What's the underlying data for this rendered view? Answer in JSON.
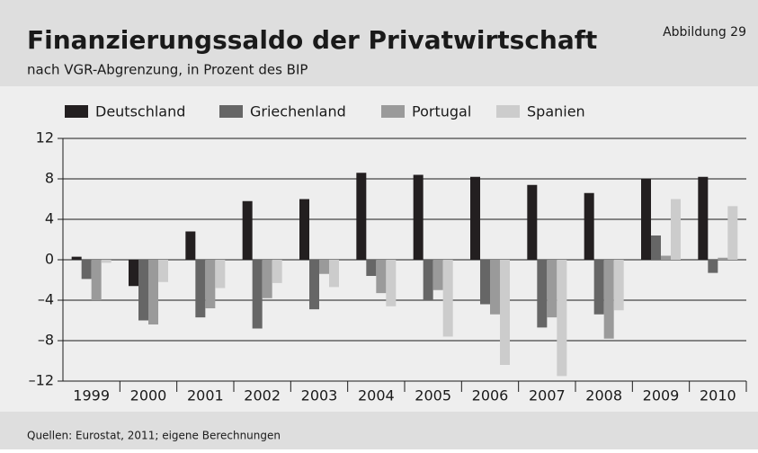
{
  "header": {
    "title": "Finanzierungssaldo der Privatwirtschaft",
    "subtitle": "nach VGR-Abgrenzung, in Prozent des BIP",
    "figure": "Abbildung 29"
  },
  "footer": {
    "source": "Quellen: Eurostat, 2011; eigene Berechnungen"
  },
  "chart_data": {
    "type": "bar",
    "categories": [
      "1999",
      "2000",
      "2001",
      "2002",
      "2003",
      "2004",
      "2005",
      "2006",
      "2007",
      "2008",
      "2009",
      "2010"
    ],
    "series": [
      {
        "name": "Deutschland",
        "color": "#231f20",
        "values": [
          0.3,
          -2.6,
          2.8,
          5.8,
          6.0,
          8.6,
          8.4,
          8.2,
          7.4,
          6.6,
          8.0,
          8.2
        ]
      },
      {
        "name": "Griechenland",
        "color": "#666666",
        "values": [
          -1.9,
          -6.0,
          -5.7,
          -6.8,
          -4.9,
          -1.6,
          -4.0,
          -4.4,
          -6.7,
          -5.4,
          2.4,
          -1.3
        ]
      },
      {
        "name": "Portugal",
        "color": "#9a9a9a",
        "values": [
          -4.0,
          -6.4,
          -4.8,
          -3.8,
          -1.4,
          -3.3,
          -3.0,
          -5.4,
          -5.7,
          -7.8,
          0.4,
          0.2
        ]
      },
      {
        "name": "Spanien",
        "color": "#cccccc",
        "values": [
          -0.3,
          -2.2,
          -2.8,
          -2.3,
          -2.7,
          -4.6,
          -7.6,
          -10.4,
          -11.5,
          -5.0,
          6.0,
          5.3
        ]
      }
    ],
    "ylim": [
      -12,
      12
    ],
    "yticks": [
      {
        "value": -12,
        "label": "–12"
      },
      {
        "value": -8,
        "label": "–8"
      },
      {
        "value": -4,
        "label": "–4"
      },
      0,
      4,
      8,
      12
    ],
    "grid": true
  }
}
